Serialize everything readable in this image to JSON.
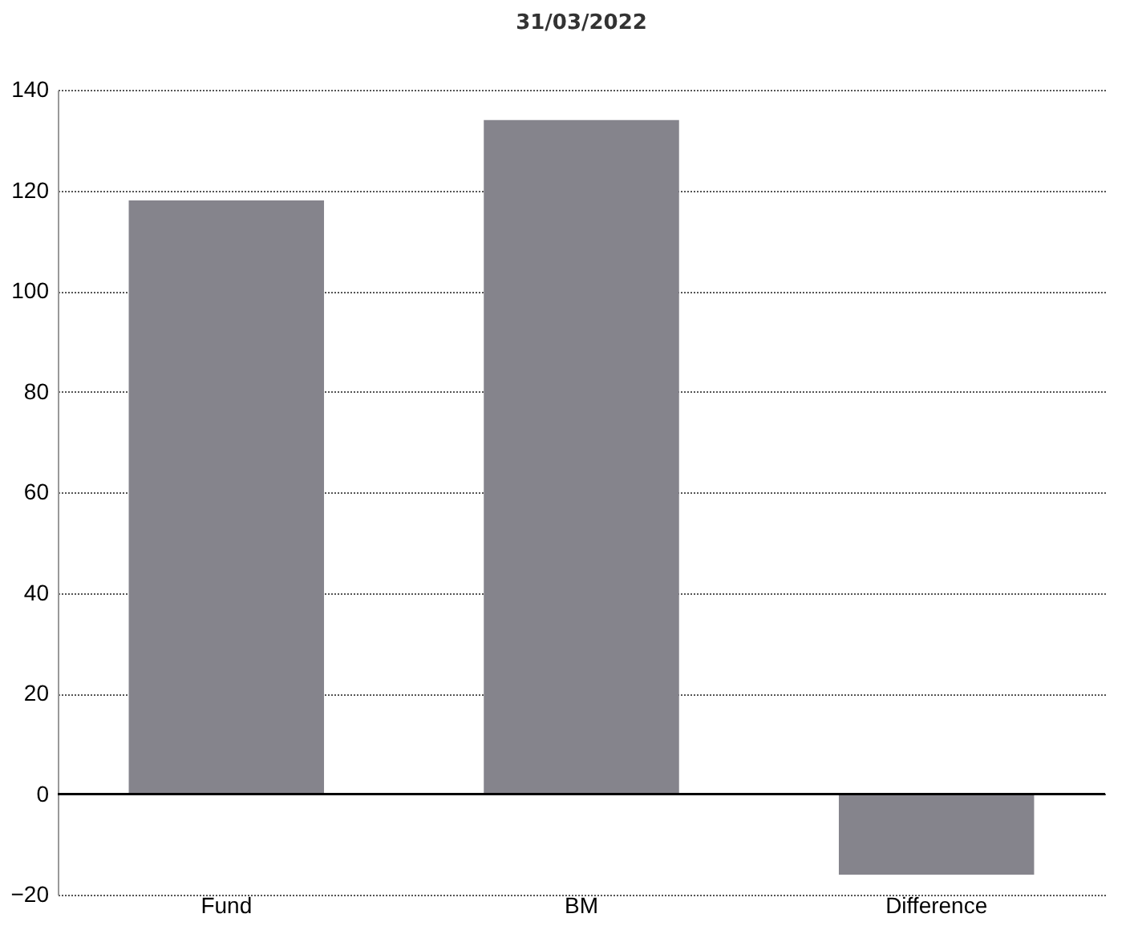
{
  "chart_data": {
    "type": "bar",
    "title": "31/03/2022",
    "categories": [
      "Fund",
      "BM",
      "Difference"
    ],
    "values": [
      118,
      134,
      -16
    ],
    "color": "#85848c",
    "ylim": [
      -20,
      140
    ],
    "yticks": [
      -20,
      0,
      20,
      40,
      60,
      80,
      100,
      120,
      140
    ],
    "grid": "y",
    "ref_lines": [
      {
        "axis": "y",
        "value": 0,
        "color": "#000000"
      }
    ]
  }
}
